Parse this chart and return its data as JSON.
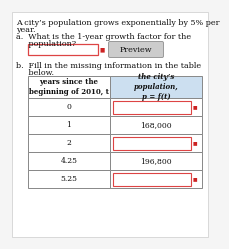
{
  "title_text": "A city’s population grows exponentially by 5% per\nyear.",
  "part_a_text_1": "a.  What is the 1-year growth factor for the",
  "part_a_text_2": "     population?",
  "part_b_text_1": "b.  Fill in the missing information in the table",
  "part_b_text_2": "     below.",
  "col1_header": "years since the\nbeginning of 2010, t",
  "col2_header": "the city’s\npopulation,\np = f(t)",
  "table_rows": [
    {
      "t": "0",
      "p": "",
      "p_filled": false
    },
    {
      "t": "1",
      "p": "168,000",
      "p_filled": true
    },
    {
      "t": "2",
      "p": "",
      "p_filled": false
    },
    {
      "t": "4.25",
      "p": "196,800",
      "p_filled": true
    },
    {
      "t": "5.25",
      "p": "",
      "p_filled": false
    }
  ],
  "bg_color": "#f5f5f5",
  "page_bg": "#ffffff",
  "input_box_color": "#ffffff",
  "input_box_border": "#dd4444",
  "preview_btn_color": "#cccccc",
  "preview_btn_text": "Preview",
  "table_border_color": "#888888",
  "text_color": "#111111",
  "header_bg_col2": "#ccdff0",
  "header_bg_col1": "#ffffff"
}
